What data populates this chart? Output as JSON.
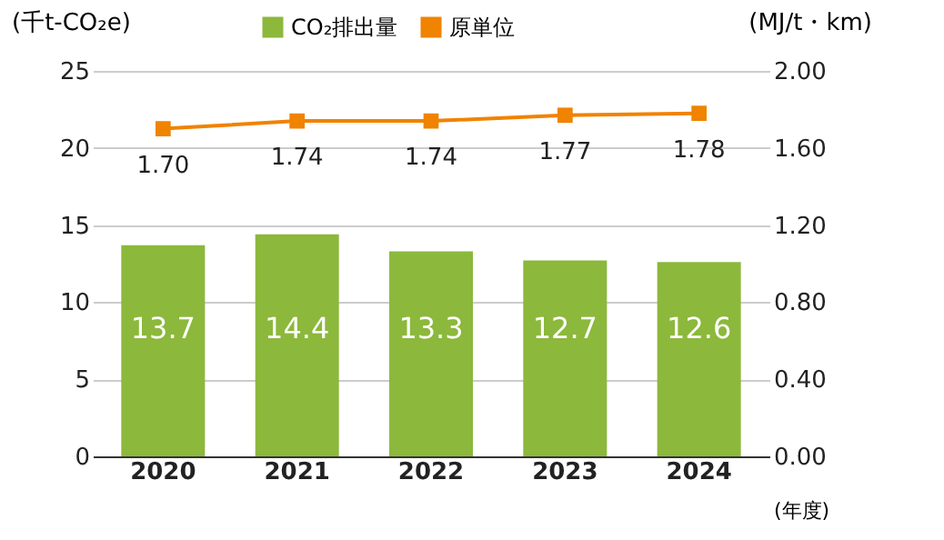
{
  "chart_data": {
    "type": "bar",
    "ylabel": "(千t-CO₂e)",
    "y2label": "(MJ/t・km)",
    "xlabel": "(年度)",
    "categories": [
      "2020",
      "2021",
      "2022",
      "2023",
      "2024"
    ],
    "series": [
      {
        "name": "CO₂排出量",
        "color": "#8cb83c",
        "values": [
          13.7,
          14.4,
          13.3,
          12.7,
          12.6
        ]
      },
      {
        "name": "原単位",
        "type": "line",
        "axis": "y2",
        "color": "#f08300",
        "marker": "square",
        "values": [
          1.7,
          1.74,
          1.74,
          1.77,
          1.78
        ],
        "value_labels": [
          "1.70",
          "1.74",
          "1.74",
          "1.77",
          "1.78"
        ]
      }
    ],
    "ylim": [
      0,
      25
    ],
    "yticks": [
      0,
      5,
      10,
      15,
      20,
      25
    ],
    "y2lim": [
      0,
      2
    ],
    "y2ticks": [
      {
        "value": 0,
        "label": "0.00"
      },
      {
        "value": 0.4,
        "label": "0.40"
      },
      {
        "value": 0.8,
        "label": "0.80"
      },
      {
        "value": 1.2,
        "label": "1.20"
      },
      {
        "value": 1.6,
        "label": "1.60"
      },
      {
        "value": 2,
        "label": "2.00"
      }
    ],
    "grid": "y",
    "legend": "top",
    "data_labels": true
  }
}
